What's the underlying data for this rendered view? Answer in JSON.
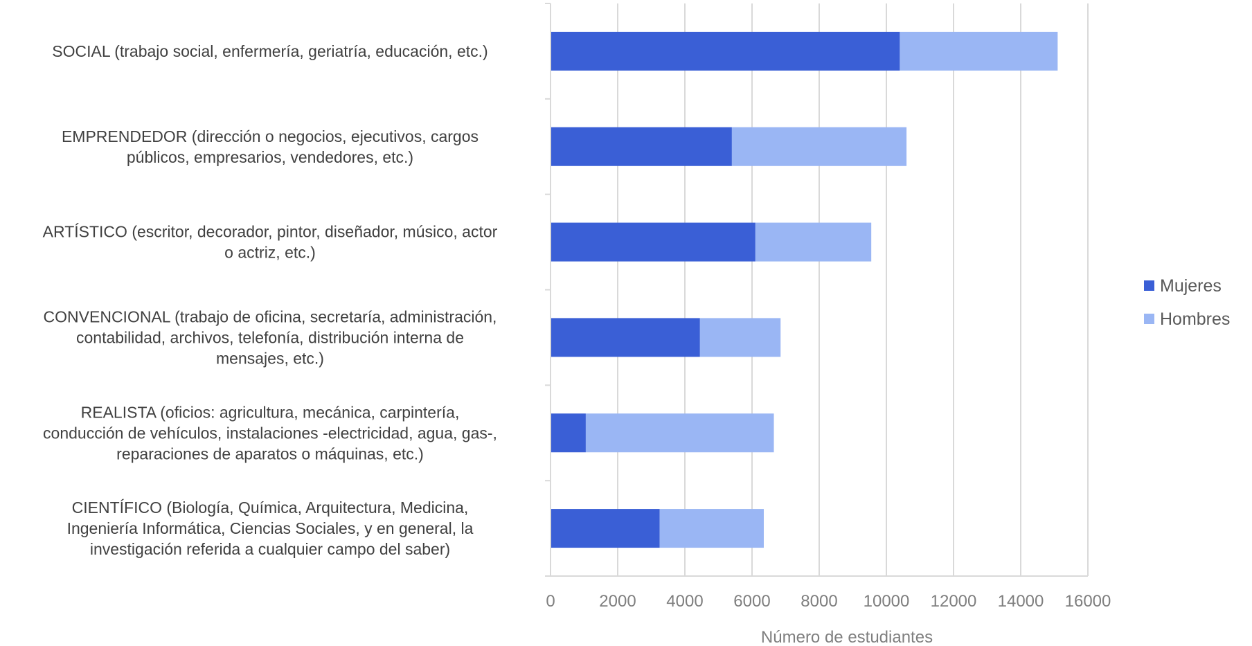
{
  "chart_data": {
    "type": "bar",
    "orientation": "horizontal",
    "stacked": true,
    "categories": [
      "SOCIAL (trabajo social, enfermería, geriatría, educación, etc.)",
      "EMPRENDEDOR (dirección o negocios, ejecutivos, cargos públicos, empresarios, vendedores, etc.)",
      "ARTÍSTICO (escritor, decorador, pintor, diseñador, músico, actor o actriz, etc.)",
      "CONVENCIONAL (trabajo de oficina, secretaría, administración, contabilidad, archivos, telefonía, distribución interna de mensajes, etc.)",
      "REALISTA (oficios: agricultura, mecánica, carpintería, conducción de vehículos, instalaciones -electricidad, agua, gas-, reparaciones de aparatos o máquinas, etc.)",
      "CIENTÍFICO (Biología, Química, Arquitectura, Medicina, Ingeniería Informática, Ciencias Sociales, y en general, la investigación referida a cualquier campo del saber)"
    ],
    "category_lines": [
      [
        "SOCIAL (trabajo social, enfermería, geriatría, educación, etc.)"
      ],
      [
        "EMPRENDEDOR (dirección o negocios, ejecutivos, cargos",
        "públicos, empresarios, vendedores, etc.)"
      ],
      [
        "ARTÍSTICO (escritor, decorador, pintor, diseñador, músico, actor",
        "o actriz, etc.)"
      ],
      [
        "CONVENCIONAL (trabajo de oficina, secretaría, administración,",
        "contabilidad, archivos, telefonía, distribución interna de",
        "mensajes, etc.)"
      ],
      [
        "REALISTA (oficios: agricultura, mecánica, carpintería,",
        "conducción de vehículos, instalaciones -electricidad, agua, gas-,",
        "reparaciones de aparatos o máquinas, etc.)"
      ],
      [
        "CIENTÍFICO (Biología, Química, Arquitectura, Medicina,",
        "Ingeniería Informática, Ciencias Sociales, y en general, la",
        "investigación referida a cualquier campo del saber)"
      ]
    ],
    "series": [
      {
        "name": "Mujeres",
        "color": "#3A5FD6",
        "values": [
          10400,
          5400,
          6100,
          4450,
          1050,
          3250
        ]
      },
      {
        "name": "Hombres",
        "color": "#9AB6F4",
        "values": [
          4700,
          5200,
          3450,
          2400,
          5600,
          3100
        ]
      }
    ],
    "xlabel": "Número de estudiantes",
    "xlim": [
      0,
      16000
    ],
    "xticks": [
      "0",
      "2000",
      "4000",
      "6000",
      "8000",
      "10000",
      "12000",
      "14000",
      "16000"
    ],
    "grid": true,
    "legend_position": "right"
  }
}
